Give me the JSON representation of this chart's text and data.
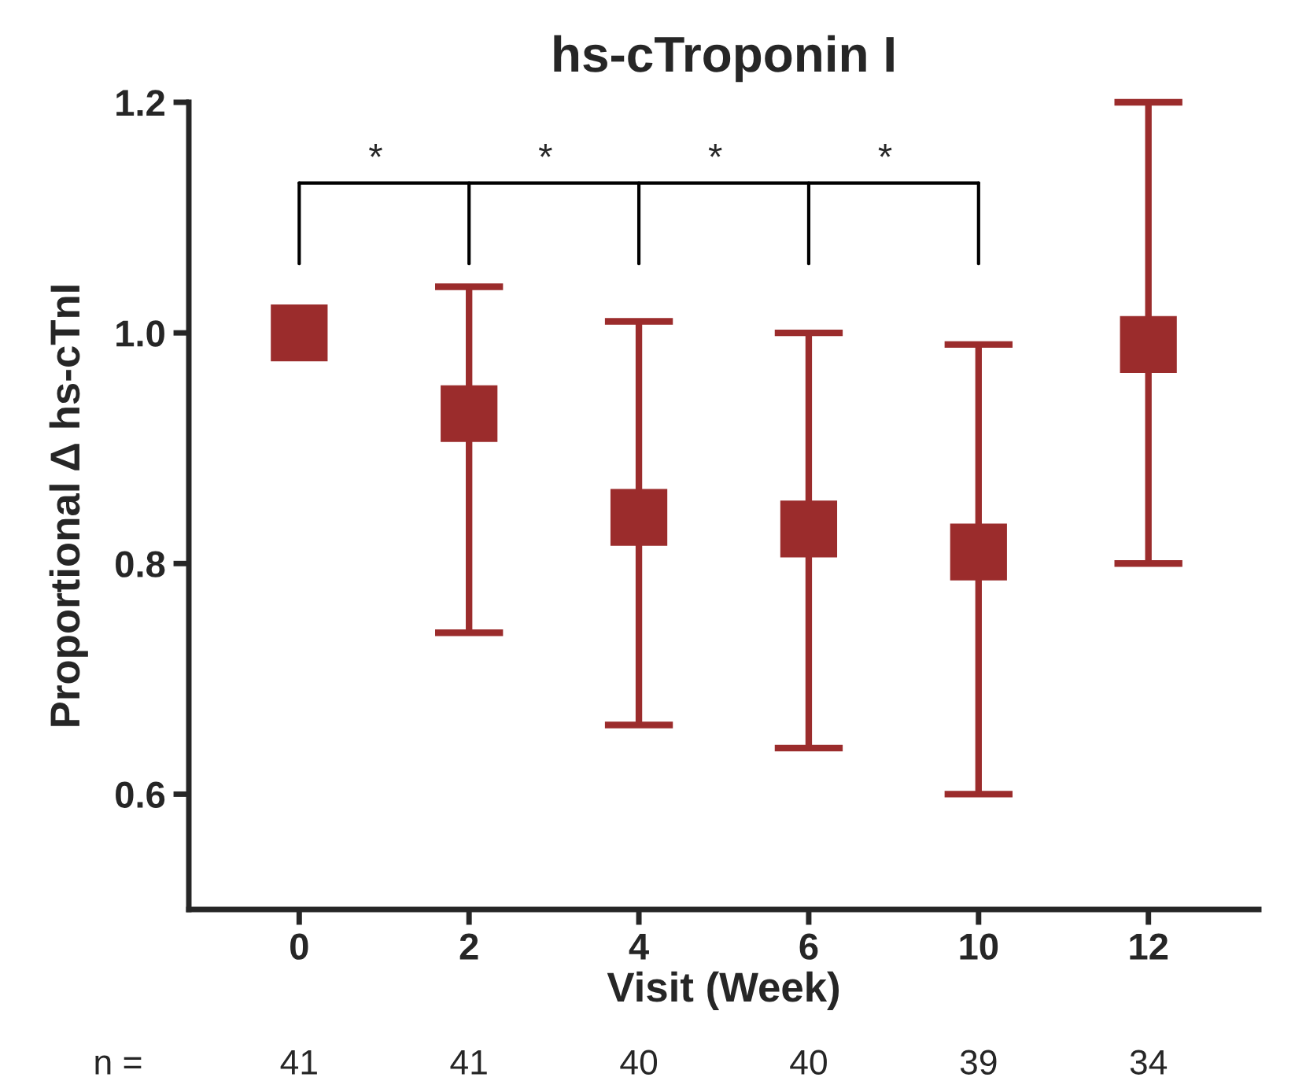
{
  "chart_data": {
    "type": "scatter",
    "title": "hs-cTroponin I",
    "xlabel": "Visit (Week)",
    "ylabel": "Proportional Δ hs-cTnI",
    "categories": [
      "0",
      "2",
      "4",
      "6",
      "10",
      "12"
    ],
    "color": "#9b2c2c",
    "values": [
      1.0,
      0.93,
      0.84,
      0.83,
      0.81,
      0.99
    ],
    "errors": [
      null,
      [
        0.74,
        1.04
      ],
      [
        0.66,
        1.01
      ],
      [
        0.64,
        1.0
      ],
      [
        0.6,
        0.99
      ],
      [
        0.8,
        1.2
      ]
    ],
    "ylim": [
      0.5,
      1.2
    ],
    "yticks": [
      0.6,
      0.8,
      {
        "value": 1.0,
        "label": "1.0"
      },
      1.2
    ],
    "marker": "square",
    "grid": false,
    "legend": false,
    "annotations": [
      "*",
      "*",
      "*",
      "*",
      "n =",
      "41",
      "41",
      "40",
      "40",
      "39",
      "34"
    ]
  }
}
